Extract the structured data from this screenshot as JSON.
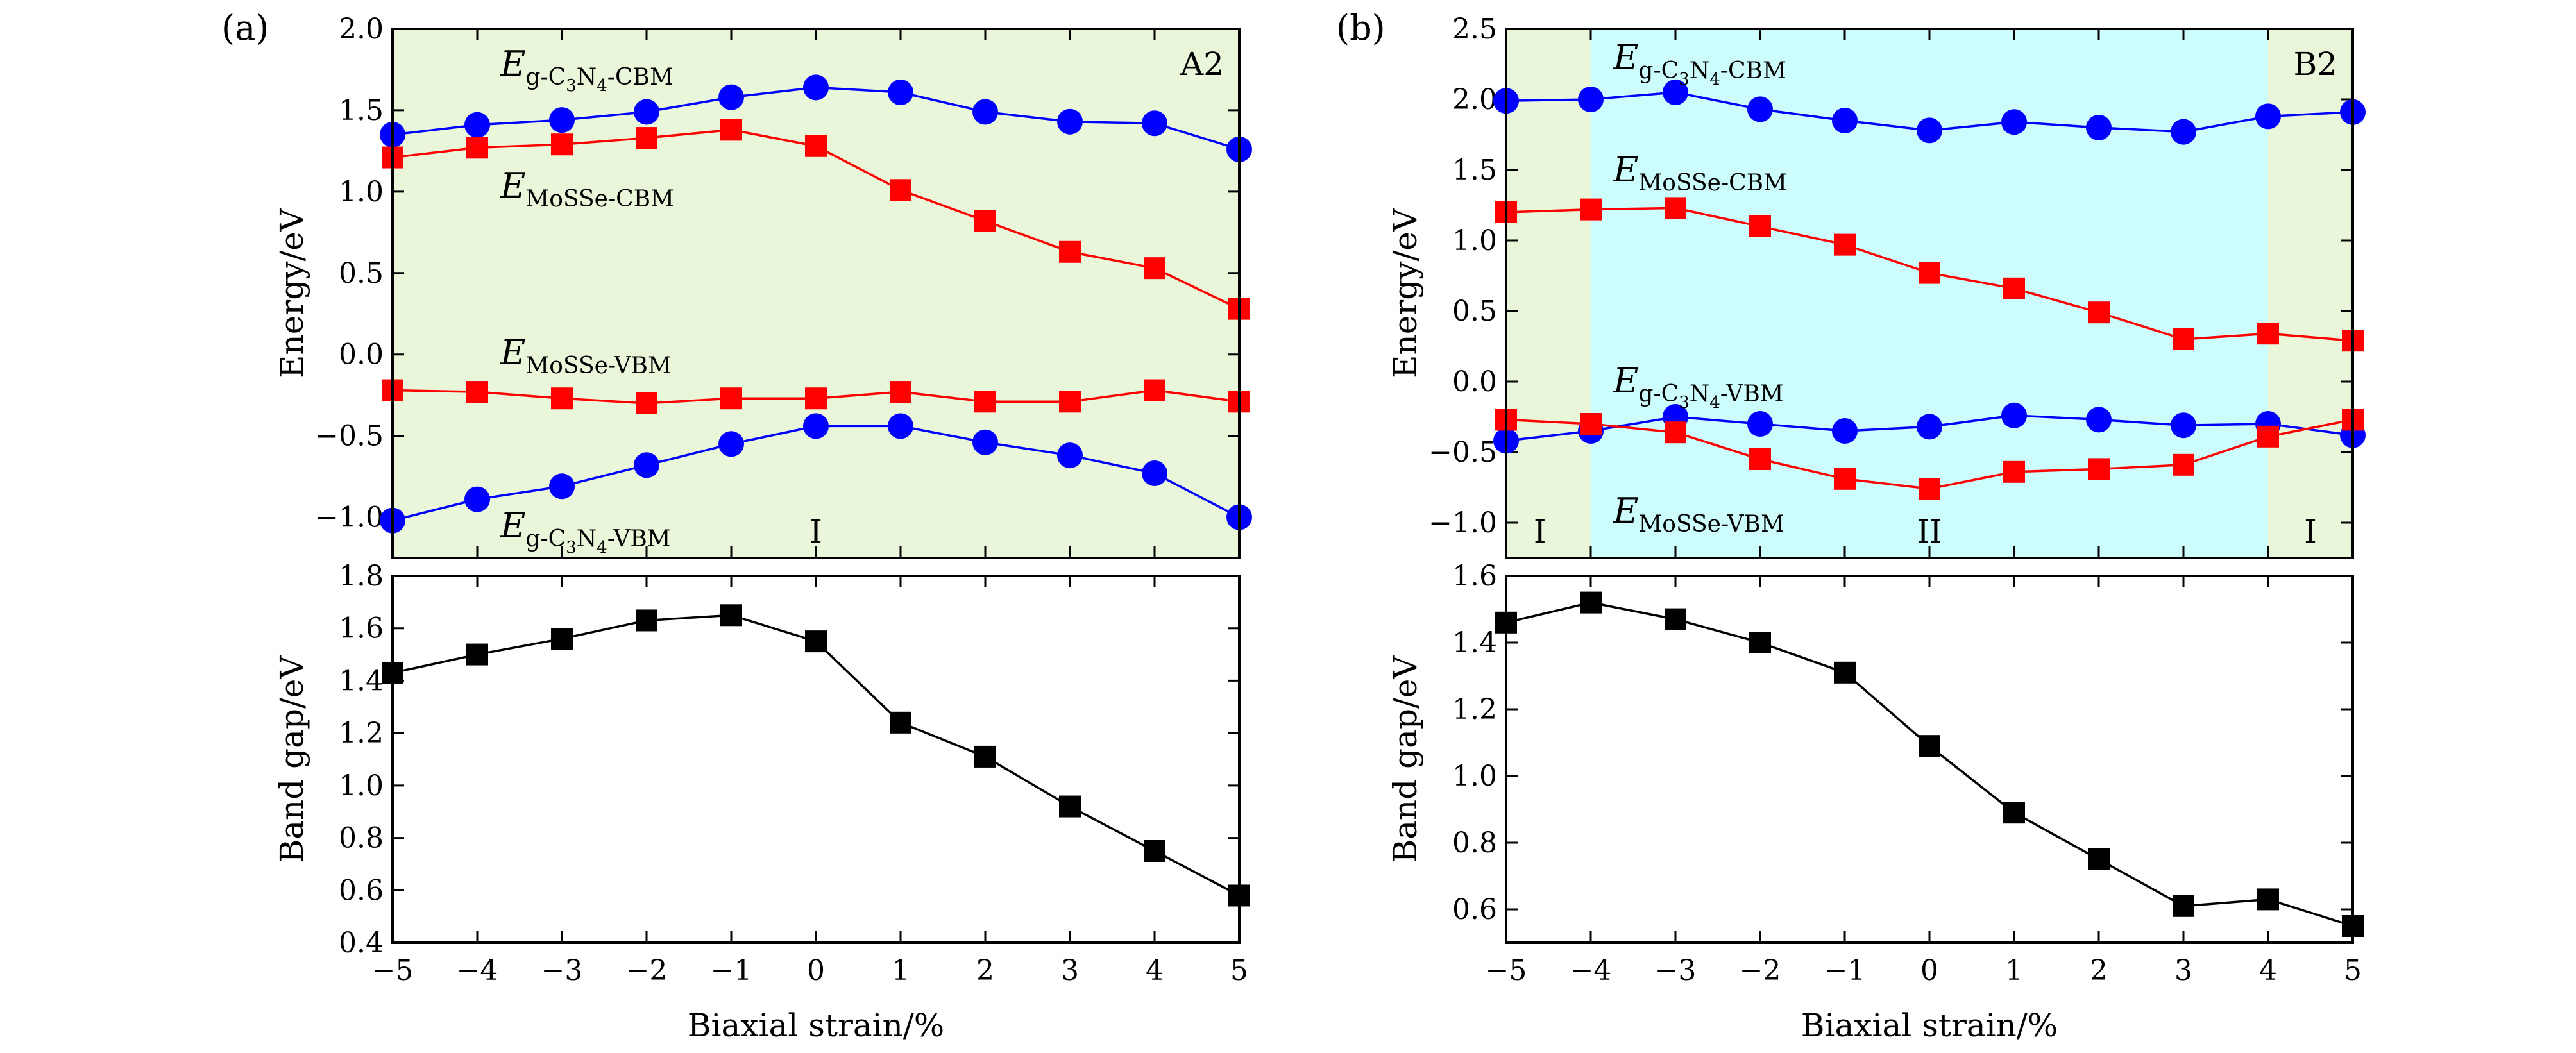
{
  "panel_labels": [
    "(a)",
    "(b)"
  ],
  "chart_data": [
    {
      "type": "line",
      "panel": "(a)",
      "tag": "A2",
      "ylabel": "Energy/eV",
      "xlim": [
        -5,
        5
      ],
      "ylim": [
        -1.25,
        2.0
      ],
      "x": [
        -5,
        -4,
        -3,
        -2,
        -1,
        0,
        1,
        2,
        3,
        4,
        5
      ],
      "yticks": [
        -1.0,
        -0.5,
        0.0,
        0.5,
        1.0,
        1.5,
        2.0
      ],
      "ytick_labels": [
        "−1.0",
        "−0.5",
        "0.0",
        "0.5",
        "1.0",
        "1.5",
        "2.0"
      ],
      "regions": [
        {
          "from": -5,
          "to": 5,
          "color": "#eaf6da",
          "label": "I",
          "label_x": 0
        }
      ],
      "series": [
        {
          "name_main": "E",
          "name_sub": "g-C",
          "name_sub2": "3",
          "name_sub3": "N",
          "name_sub4": "4",
          "name_sub5": "-CBM",
          "marker": "circle",
          "color": "#0000ff",
          "values": [
            1.35,
            1.41,
            1.44,
            1.49,
            1.58,
            1.64,
            1.61,
            1.49,
            1.43,
            1.42,
            1.26
          ]
        },
        {
          "name_main": "E",
          "name_sub": "MoSSe-CBM",
          "marker": "square",
          "color": "#ff0000",
          "values": [
            1.21,
            1.27,
            1.29,
            1.33,
            1.38,
            1.28,
            1.01,
            0.82,
            0.63,
            0.53,
            0.28
          ]
        },
        {
          "name_main": "E",
          "name_sub": "MoSSe-VBM",
          "marker": "square",
          "color": "#ff0000",
          "values": [
            -0.22,
            -0.23,
            -0.27,
            -0.3,
            -0.27,
            -0.27,
            -0.23,
            -0.29,
            -0.29,
            -0.22,
            -0.29
          ]
        },
        {
          "name_main": "E",
          "name_sub": "g-C",
          "name_sub2": "3",
          "name_sub3": "N",
          "name_sub4": "4",
          "name_sub5": "-VBM",
          "marker": "circle",
          "color": "#0000ff",
          "values": [
            -1.02,
            -0.89,
            -0.81,
            -0.68,
            -0.55,
            -0.44,
            -0.44,
            -0.54,
            -0.62,
            -0.73,
            -1.0
          ]
        }
      ]
    },
    {
      "type": "line",
      "panel": "(a)",
      "ylabel": "Band gap/eV",
      "xlabel": "Biaxial strain/%",
      "xlim": [
        -5,
        5
      ],
      "ylim": [
        0.4,
        1.8
      ],
      "x": [
        -5,
        -4,
        -3,
        -2,
        -1,
        0,
        1,
        2,
        3,
        4,
        5
      ],
      "xticks": [
        -5,
        -4,
        -3,
        -2,
        -1,
        0,
        1,
        2,
        3,
        4,
        5
      ],
      "xtick_labels": [
        "−5",
        "−4",
        "−3",
        "−2",
        "−1",
        "0",
        "1",
        "2",
        "3",
        "4",
        "5"
      ],
      "yticks": [
        0.4,
        0.6,
        0.8,
        1.0,
        1.2,
        1.4,
        1.6,
        1.8
      ],
      "ytick_labels": [
        "0.4",
        "0.6",
        "0.8",
        "1.0",
        "1.2",
        "1.4",
        "1.6",
        "1.8"
      ],
      "series": [
        {
          "marker": "square",
          "color": "#000000",
          "values": [
            1.43,
            1.5,
            1.56,
            1.63,
            1.65,
            1.55,
            1.24,
            1.11,
            0.92,
            0.75,
            0.58
          ]
        }
      ]
    },
    {
      "type": "line",
      "panel": "(b)",
      "tag": "B2",
      "ylabel": "Energy/eV",
      "xlim": [
        -5,
        5
      ],
      "ylim": [
        -1.25,
        2.5
      ],
      "x": [
        -5,
        -4,
        -3,
        -2,
        -1,
        0,
        1,
        2,
        3,
        4,
        5
      ],
      "yticks": [
        -1.0,
        -0.5,
        0.0,
        0.5,
        1.0,
        1.5,
        2.0,
        2.5
      ],
      "ytick_labels": [
        "−1.0",
        "−0.5",
        "0.0",
        "0.5",
        "1.0",
        "1.5",
        "2.0",
        "2.5"
      ],
      "regions": [
        {
          "from": -5,
          "to": -4,
          "color": "#eaf6da",
          "label": "I",
          "label_x": -4.6
        },
        {
          "from": -4,
          "to": 4,
          "color": "#ccfcfc",
          "label": "II",
          "label_x": 0
        },
        {
          "from": 4,
          "to": 5,
          "color": "#eaf6da",
          "label": "I",
          "label_x": 4.5
        }
      ],
      "series": [
        {
          "name_main": "E",
          "name_sub": "g-C",
          "name_sub2": "3",
          "name_sub3": "N",
          "name_sub4": "4",
          "name_sub5": "-CBM",
          "marker": "circle",
          "color": "#0000ff",
          "values": [
            1.99,
            2.0,
            2.05,
            1.93,
            1.85,
            1.78,
            1.84,
            1.8,
            1.77,
            1.88,
            1.91
          ]
        },
        {
          "name_main": "E",
          "name_sub": "MoSSe-CBM",
          "marker": "square",
          "color": "#ff0000",
          "values": [
            1.2,
            1.22,
            1.23,
            1.1,
            0.97,
            0.77,
            0.66,
            0.49,
            0.3,
            0.34,
            0.29
          ]
        },
        {
          "name_main": "E",
          "name_sub": "g-C",
          "name_sub2": "3",
          "name_sub3": "N",
          "name_sub4": "4",
          "name_sub5": "-VBM",
          "marker": "circle",
          "color": "#0000ff",
          "values": [
            -0.42,
            -0.35,
            -0.25,
            -0.3,
            -0.35,
            -0.32,
            -0.24,
            -0.27,
            -0.31,
            -0.3,
            -0.38
          ]
        },
        {
          "name_main": "E",
          "name_sub": "MoSSe-VBM",
          "marker": "square",
          "color": "#ff0000",
          "values": [
            -0.27,
            -0.3,
            -0.36,
            -0.55,
            -0.69,
            -0.76,
            -0.64,
            -0.62,
            -0.59,
            -0.39,
            -0.27
          ]
        }
      ]
    },
    {
      "type": "line",
      "panel": "(b)",
      "ylabel": "Band gap/eV",
      "xlabel": "Biaxial strain/%",
      "xlim": [
        -5,
        5
      ],
      "ylim": [
        0.5,
        1.6
      ],
      "x": [
        -5,
        -4,
        -3,
        -2,
        -1,
        0,
        1,
        2,
        3,
        4,
        5
      ],
      "xticks": [
        -5,
        -4,
        -3,
        -2,
        -1,
        0,
        1,
        2,
        3,
        4,
        5
      ],
      "xtick_labels": [
        "−5",
        "−4",
        "−3",
        "−2",
        "−1",
        "0",
        "1",
        "2",
        "3",
        "4",
        "5"
      ],
      "yticks": [
        0.6,
        0.8,
        1.0,
        1.2,
        1.4,
        1.6
      ],
      "ytick_labels": [
        "0.6",
        "0.8",
        "1.0",
        "1.2",
        "1.4",
        "1.6"
      ],
      "series": [
        {
          "marker": "square",
          "color": "#000000",
          "values": [
            1.46,
            1.52,
            1.47,
            1.4,
            1.31,
            1.09,
            0.89,
            0.75,
            0.61,
            0.63,
            0.55
          ]
        }
      ]
    }
  ]
}
